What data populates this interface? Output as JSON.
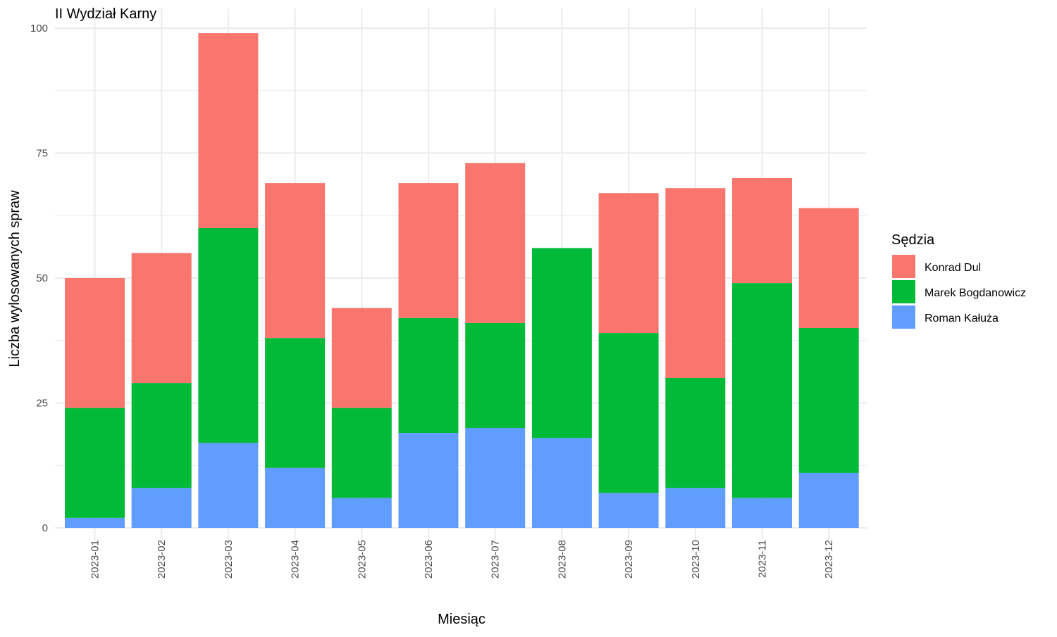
{
  "chart_data": {
    "type": "bar",
    "stacked": true,
    "title": "II Wydział Karny",
    "xlabel": "Miesiąc",
    "ylabel": "Liczba wylosowanych spraw",
    "ylim": [
      0,
      100
    ],
    "yticks": [
      0,
      25,
      50,
      75,
      100
    ],
    "grid": true,
    "legend_position": "right",
    "legend_title": "Sędzia",
    "categories": [
      "2023-01",
      "2023-02",
      "2023-03",
      "2023-04",
      "2023-05",
      "2023-06",
      "2023-07",
      "2023-08",
      "2023-09",
      "2023-10",
      "2023-11",
      "2023-12"
    ],
    "series": [
      {
        "name": "Roman Kałuża",
        "color": "#619CFF",
        "values": [
          2,
          8,
          17,
          12,
          6,
          19,
          20,
          18,
          7,
          8,
          6,
          11
        ]
      },
      {
        "name": "Marek Bogdanowicz",
        "color": "#00BA38",
        "values": [
          22,
          21,
          43,
          26,
          18,
          23,
          21,
          38,
          32,
          22,
          43,
          29
        ]
      },
      {
        "name": "Konrad Dul",
        "color": "#F8766D",
        "values": [
          26,
          26,
          39,
          31,
          20,
          27,
          32,
          0,
          28,
          38,
          21,
          24
        ]
      }
    ],
    "legend_order": [
      "Konrad Dul",
      "Marek Bogdanowicz",
      "Roman Kałuża"
    ]
  }
}
